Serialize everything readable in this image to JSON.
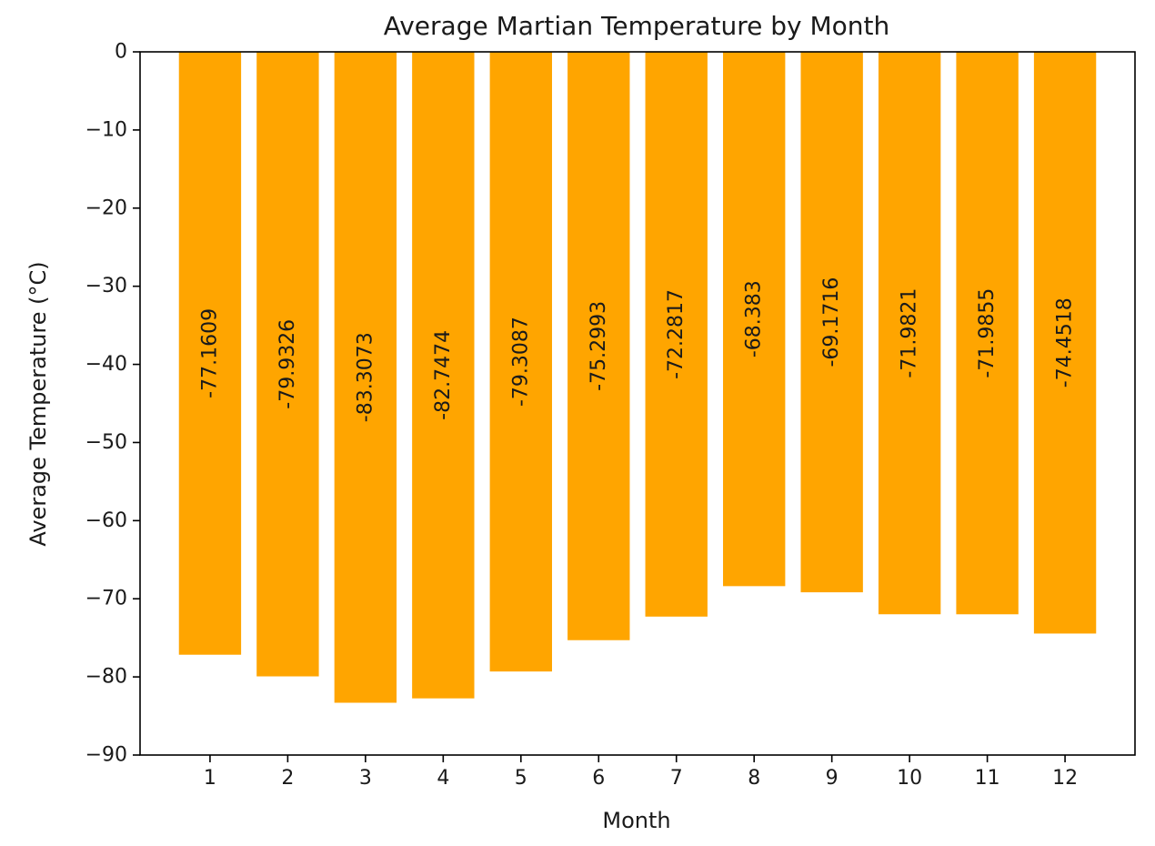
{
  "chart_data": {
    "type": "bar",
    "title": "Average Martian Temperature by Month",
    "xlabel": "Month",
    "ylabel": "Average Temperature (°C)",
    "categories": [
      "1",
      "2",
      "3",
      "4",
      "5",
      "6",
      "7",
      "8",
      "9",
      "10",
      "11",
      "12"
    ],
    "values": [
      -77.1609,
      -79.9326,
      -83.3073,
      -82.7474,
      -79.3087,
      -75.2993,
      -72.2817,
      -68.383,
      -69.1716,
      -71.9821,
      -71.9855,
      -74.4518
    ],
    "value_labels": [
      "-77.1609",
      "-79.9326",
      "-83.3073",
      "-82.7474",
      "-79.3087",
      "-75.2993",
      "-72.2817",
      "-68.383",
      "-69.1716",
      "-71.9821",
      "-71.9855",
      "-74.4518"
    ],
    "ylim": [
      -90,
      0
    ],
    "yticks": [
      0,
      -10,
      -20,
      -30,
      -40,
      -50,
      -60,
      -70,
      -80,
      -90
    ],
    "ytick_labels": [
      "0",
      "−10",
      "−20",
      "−30",
      "−40",
      "−50",
      "−60",
      "−70",
      "−80",
      "−90"
    ],
    "bar_color": "#ffa500",
    "grid": false
  }
}
